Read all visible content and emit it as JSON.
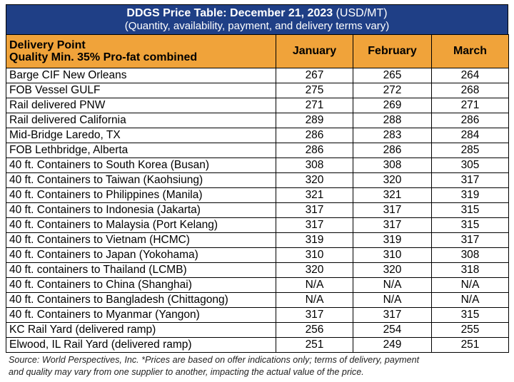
{
  "title": {
    "main": "DDGS Price Table: December 21, 2023",
    "unit": "(USD/MT)",
    "subtitle": "(Quantity, availability, payment, and delivery terms vary)"
  },
  "header": {
    "col1_line1": "Delivery Point",
    "col1_line2": "Quality Min. 35% Pro-fat combined",
    "jan": "January",
    "feb": "February",
    "mar": "March"
  },
  "rows": [
    {
      "point": "Barge CIF New Orleans",
      "jan": "267",
      "feb": "265",
      "mar": "264"
    },
    {
      "point": "FOB Vessel GULF",
      "jan": "275",
      "feb": "272",
      "mar": "268"
    },
    {
      "point": "Rail delivered PNW",
      "jan": "271",
      "feb": "269",
      "mar": "271"
    },
    {
      "point": "Rail delivered California",
      "jan": "289",
      "feb": "288",
      "mar": "286"
    },
    {
      "point": "Mid-Bridge Laredo, TX",
      "jan": "286",
      "feb": "283",
      "mar": "284"
    },
    {
      "point": "FOB Lethbridge, Alberta",
      "jan": "286",
      "feb": "286",
      "mar": "285"
    },
    {
      "point": "40 ft. Containers to South Korea (Busan)",
      "jan": "308",
      "feb": "308",
      "mar": "305"
    },
    {
      "point": "40 ft. Containers to Taiwan (Kaohsiung)",
      "jan": "320",
      "feb": "320",
      "mar": "317"
    },
    {
      "point": "40 ft. Containers to Philippines (Manila)",
      "jan": "321",
      "feb": "321",
      "mar": "319"
    },
    {
      "point": "40 ft. Containers to Indonesia (Jakarta)",
      "jan": "317",
      "feb": "317",
      "mar": "315"
    },
    {
      "point": "40 ft. Containers to Malaysia (Port Kelang)",
      "jan": "317",
      "feb": "317",
      "mar": "315"
    },
    {
      "point": "40 ft. Containers to Vietnam (HCMC)",
      "jan": "319",
      "feb": "319",
      "mar": "317"
    },
    {
      "point": "40 ft. Containers to Japan (Yokohama)",
      "jan": "310",
      "feb": "310",
      "mar": "308"
    },
    {
      "point": "40 ft. containers to Thailand (LCMB)",
      "jan": "320",
      "feb": "320",
      "mar": "318"
    },
    {
      "point": "40 ft. Containers to China (Shanghai)",
      "jan": "N/A",
      "feb": "N/A",
      "mar": "N/A"
    },
    {
      "point": "40 ft. Containers to Bangladesh (Chittagong)",
      "jan": "N/A",
      "feb": "N/A",
      "mar": "N/A"
    },
    {
      "point": "40 ft. Containers to Myanmar (Yangon)",
      "jan": "317",
      "feb": "317",
      "mar": "315"
    },
    {
      "point": "KC Rail Yard (delivered ramp)",
      "jan": "256",
      "feb": "254",
      "mar": "255"
    },
    {
      "point": "Elwood, IL Rail Yard (delivered ramp)",
      "jan": "251",
      "feb": "249",
      "mar": "251"
    }
  ],
  "source": {
    "line1": "Source: World Perspectives, Inc. *Prices are based on offer indications only; terms of delivery, payment",
    "line2": "and quality may vary from one supplier to another, impacting the actual value of the price."
  }
}
